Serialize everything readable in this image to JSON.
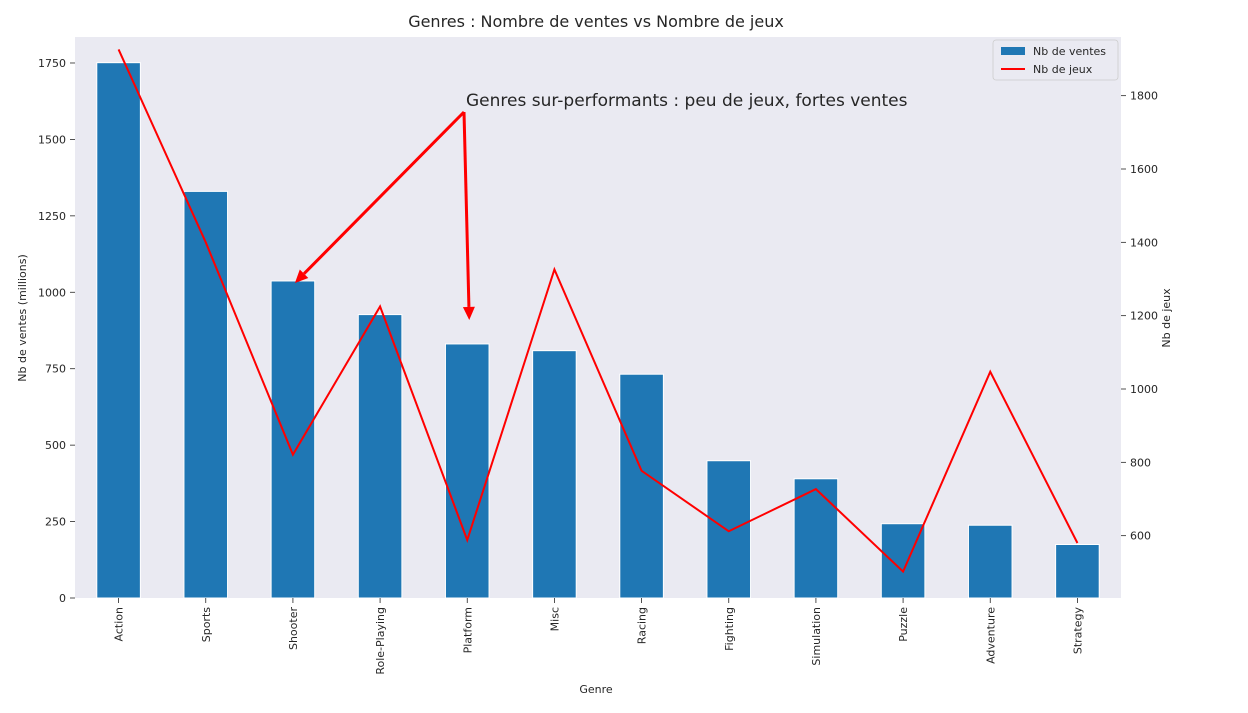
{
  "chart_data": {
    "type": "bar",
    "title": "Genres : Nombre de ventes vs Nombre de jeux",
    "xlabel": "Genre",
    "ylabel": "Nb de ventes (millions)",
    "y2label": "Nb de jeux",
    "categories": [
      "Action",
      "Sports",
      "Shooter",
      "Role-Playing",
      "Platform",
      "Misc",
      "Racing",
      "Fighting",
      "Simulation",
      "Puzzle",
      "Adventure",
      "Strategy"
    ],
    "series": [
      {
        "name": "Nb de ventes",
        "type": "bar",
        "axis": "left",
        "color": "#1f77b4",
        "values": [
          1751,
          1330,
          1037,
          927,
          831,
          809,
          732,
          449,
          390,
          243,
          238,
          175
        ]
      },
      {
        "name": "Nb de jeux",
        "type": "line",
        "axis": "right",
        "color": "#ff0000",
        "values": [
          1926,
          1400,
          821,
          1225,
          588,
          1326,
          777,
          612,
          727,
          502,
          1047,
          580
        ]
      }
    ],
    "ylim": [
      0,
      1835
    ],
    "yticks": [
      0,
      250,
      500,
      750,
      1000,
      1250,
      1500,
      1750
    ],
    "y2lim": [
      430,
      1960
    ],
    "y2ticks": [
      600,
      800,
      1000,
      1200,
      1400,
      1600,
      1800
    ],
    "legend_position": "top-right",
    "grid": false,
    "background": "#eaeaf2",
    "annotation": {
      "text": "Genres sur-performants : peu de jeux, fortes ventes",
      "arrow_targets": [
        "Shooter",
        "Platform"
      ],
      "color": "#ff0000"
    }
  }
}
